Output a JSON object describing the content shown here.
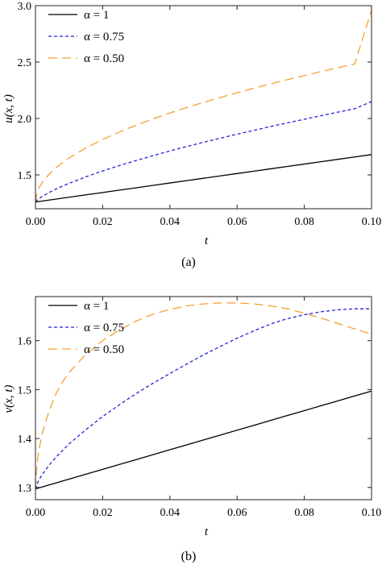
{
  "chart_data": [
    {
      "type": "line",
      "panel_label": "(a)",
      "xlabel": "t",
      "ylabel": "u(x, t)",
      "xlim": [
        0,
        0.1
      ],
      "ylim": [
        1.2,
        3.0
      ],
      "xticks": [
        0.0,
        0.02,
        0.04,
        0.06,
        0.08,
        0.1
      ],
      "xtick_labels": [
        "0.00",
        "0.02",
        "0.04",
        "0.06",
        "0.08",
        "0.10"
      ],
      "yticks": [
        1.5,
        2.0,
        2.5,
        3.0
      ],
      "ytick_labels": [
        "1.5",
        "2.0",
        "2.5",
        "3.0"
      ],
      "legend_position": "top-left",
      "x": [
        0,
        0.0005,
        0.001,
        0.002,
        0.004,
        0.006,
        0.008,
        0.01,
        0.015,
        0.02,
        0.025,
        0.03,
        0.035,
        0.04,
        0.045,
        0.05,
        0.055,
        0.06,
        0.065,
        0.07,
        0.075,
        0.08,
        0.085,
        0.09,
        0.095,
        0.1
      ],
      "series": [
        {
          "name": "α = 1",
          "color": "#000000",
          "dash": "solid",
          "values": [
            1.26,
            1.262,
            1.264,
            1.268,
            1.277,
            1.285,
            1.294,
            1.302,
            1.323,
            1.344,
            1.365,
            1.386,
            1.407,
            1.428,
            1.449,
            1.47,
            1.491,
            1.512,
            1.533,
            1.554,
            1.575,
            1.596,
            1.617,
            1.638,
            1.659,
            1.68
          ]
        },
        {
          "name": "α = 0.75",
          "color": "#2222dd",
          "dash": "short",
          "values": [
            1.26,
            1.277,
            1.289,
            1.309,
            1.343,
            1.373,
            1.4,
            1.425,
            1.483,
            1.535,
            1.583,
            1.628,
            1.671,
            1.712,
            1.751,
            1.789,
            1.825,
            1.861,
            1.895,
            1.929,
            1.961,
            1.993,
            2.025,
            2.056,
            2.086,
            2.15
          ]
        },
        {
          "name": "α = 0.50",
          "color": "#f5a030",
          "dash": "long",
          "values": [
            1.26,
            1.346,
            1.382,
            1.433,
            1.505,
            1.561,
            1.608,
            1.65,
            1.739,
            1.814,
            1.88,
            1.941,
            1.996,
            2.048,
            2.097,
            2.143,
            2.186,
            2.228,
            2.268,
            2.307,
            2.344,
            2.38,
            2.416,
            2.45,
            2.483,
            2.96
          ]
        }
      ]
    },
    {
      "type": "line",
      "panel_label": "(b)",
      "xlabel": "t",
      "ylabel": "v(x, t)",
      "xlim": [
        0,
        0.1
      ],
      "ylim": [
        1.275,
        1.69
      ],
      "xticks": [
        0.0,
        0.02,
        0.04,
        0.06,
        0.08,
        0.1
      ],
      "xtick_labels": [
        "0.00",
        "0.02",
        "0.04",
        "0.06",
        "0.08",
        "0.10"
      ],
      "yticks": [
        1.3,
        1.4,
        1.5,
        1.6
      ],
      "ytick_labels": [
        "1.3",
        "1.4",
        "1.5",
        "1.6"
      ],
      "legend_position": "top-left",
      "x": [
        0,
        0.0005,
        0.001,
        0.002,
        0.004,
        0.006,
        0.008,
        0.01,
        0.015,
        0.02,
        0.025,
        0.03,
        0.035,
        0.04,
        0.045,
        0.05,
        0.055,
        0.06,
        0.065,
        0.07,
        0.075,
        0.08,
        0.085,
        0.09,
        0.095,
        0.1
      ],
      "series": [
        {
          "name": "α = 1",
          "color": "#000000",
          "dash": "solid",
          "values": [
            1.297,
            1.298,
            1.299,
            1.301,
            1.305,
            1.309,
            1.313,
            1.317,
            1.327,
            1.337,
            1.347,
            1.357,
            1.367,
            1.377,
            1.387,
            1.397,
            1.407,
            1.417,
            1.427,
            1.437,
            1.447,
            1.457,
            1.467,
            1.477,
            1.487,
            1.497
          ]
        },
        {
          "name": "α = 0.75",
          "color": "#2222dd",
          "dash": "short",
          "values": [
            1.297,
            1.308,
            1.315,
            1.326,
            1.345,
            1.361,
            1.375,
            1.389,
            1.418,
            1.445,
            1.469,
            1.492,
            1.513,
            1.533,
            1.552,
            1.571,
            1.588,
            1.605,
            1.62,
            1.634,
            1.645,
            1.653,
            1.659,
            1.663,
            1.665,
            1.665
          ]
        },
        {
          "name": "α = 0.50",
          "color": "#f5a030",
          "dash": "long",
          "values": [
            1.297,
            1.35,
            1.375,
            1.41,
            1.455,
            1.49,
            1.515,
            1.535,
            1.572,
            1.6,
            1.622,
            1.64,
            1.654,
            1.664,
            1.671,
            1.675,
            1.677,
            1.677,
            1.675,
            1.671,
            1.665,
            1.656,
            1.646,
            1.635,
            1.624,
            1.613
          ]
        }
      ]
    }
  ]
}
